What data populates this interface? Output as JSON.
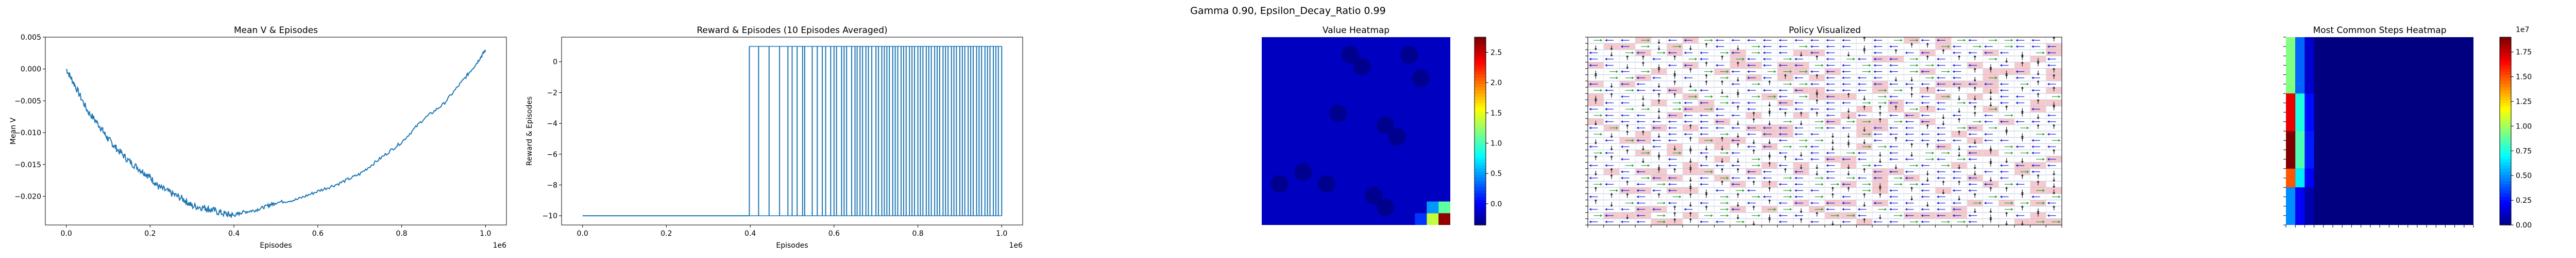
{
  "suptitle": "Gamma  0.90, Epsilon_Decay_Ratio 0.99",
  "chart_data": [
    {
      "type": "line",
      "title": "Mean V & Episodes",
      "xlabel": "Episodes",
      "ylabel": "Mean V",
      "x_offset_label": "1e6",
      "xlim": [
        -0.05,
        1.05
      ],
      "ylim": [
        -0.0245,
        0.005
      ],
      "xticks": [
        0.0,
        0.2,
        0.4,
        0.6,
        0.8,
        1.0
      ],
      "xtick_labels": [
        "0.0",
        "0.2",
        "0.4",
        "0.6",
        "0.8",
        "1.0"
      ],
      "yticks": [
        0.005,
        0.0,
        -0.005,
        -0.01,
        -0.015,
        -0.02
      ],
      "ytick_labels": [
        "0.005",
        "0.000",
        "−0.005",
        "−0.010",
        "−0.015",
        "−0.020"
      ],
      "series": [
        {
          "x": [
            0.0,
            0.02,
            0.05,
            0.08,
            0.1,
            0.12,
            0.15,
            0.18,
            0.2,
            0.22,
            0.25,
            0.28,
            0.3,
            0.33,
            0.35,
            0.38,
            0.4,
            0.42,
            0.45,
            0.48,
            0.5,
            0.55,
            0.6,
            0.65,
            0.7,
            0.75,
            0.8,
            0.85,
            0.9,
            0.95,
            0.98,
            1.0
          ],
          "y": [
            0.0,
            -0.0025,
            -0.0065,
            -0.009,
            -0.011,
            -0.0125,
            -0.0145,
            -0.016,
            -0.017,
            -0.0185,
            -0.0195,
            -0.0205,
            -0.0215,
            -0.0218,
            -0.0222,
            -0.0228,
            -0.023,
            -0.0225,
            -0.0222,
            -0.0215,
            -0.021,
            -0.0205,
            -0.0192,
            -0.018,
            -0.0165,
            -0.014,
            -0.0115,
            -0.008,
            -0.0055,
            -0.0015,
            0.001,
            0.003
          ]
        }
      ]
    },
    {
      "type": "line",
      "title": "Reward & Episodes (10 Episodes Averaged)",
      "xlabel": "Episodes",
      "ylabel": "Reward & Episodes",
      "x_offset_label": "1e6",
      "xlim": [
        -0.05,
        1.05
      ],
      "ylim": [
        -10.6,
        1.6
      ],
      "xticks": [
        0.0,
        0.2,
        0.4,
        0.6,
        0.8,
        1.0
      ],
      "xtick_labels": [
        "0.0",
        "0.2",
        "0.4",
        "0.6",
        "0.8",
        "1.0"
      ],
      "yticks": [
        0,
        -2,
        -4,
        -6,
        -8,
        -10
      ],
      "ytick_labels": [
        "0",
        "−2",
        "−4",
        "−6",
        "−8",
        "−10"
      ],
      "baseline": -10,
      "peak": 1,
      "spike_x": [
        0.398,
        0.42,
        0.445,
        0.47,
        0.49,
        0.5,
        0.512,
        0.525,
        0.53,
        0.548,
        0.56,
        0.572,
        0.58,
        0.592,
        0.6,
        0.606,
        0.618,
        0.624,
        0.63,
        0.642,
        0.65,
        0.655,
        0.662,
        0.668,
        0.676,
        0.682,
        0.69,
        0.7,
        0.706,
        0.714,
        0.72,
        0.726,
        0.732,
        0.74,
        0.746,
        0.752,
        0.76,
        0.766,
        0.772,
        0.78,
        0.786,
        0.792,
        0.8,
        0.806,
        0.812,
        0.82,
        0.826,
        0.832,
        0.84,
        0.846,
        0.852,
        0.86,
        0.866,
        0.872,
        0.88,
        0.886,
        0.892,
        0.9,
        0.906,
        0.912,
        0.92,
        0.926,
        0.932,
        0.94,
        0.946,
        0.952,
        0.96,
        0.966,
        0.972,
        0.98,
        0.986,
        0.992,
        1.0
      ]
    },
    {
      "type": "heatmap",
      "title": "Value Heatmap",
      "colormap": "jet",
      "colorbar_ticks": [
        2.5,
        2.0,
        1.5,
        1.0,
        0.5,
        0.0
      ],
      "colorbar_tick_labels": [
        "2.5",
        "2.0",
        "1.5",
        "1.0",
        "0.5",
        "0.0"
      ],
      "colorbar_range": [
        -0.35,
        2.75
      ],
      "background_value": -0.15,
      "hot_spots": [
        {
          "col": 15,
          "row": 15,
          "value": 2.7
        },
        {
          "col": 14,
          "row": 15,
          "value": 1.4
        },
        {
          "col": 15,
          "row": 14,
          "value": 1.1
        },
        {
          "col": 14,
          "row": 14,
          "value": 0.5
        },
        {
          "col": 13,
          "row": 15,
          "value": 0.2
        }
      ],
      "cold_spots": [
        [
          7,
          1
        ],
        [
          8,
          2
        ],
        [
          12,
          1
        ],
        [
          13,
          3
        ],
        [
          6,
          6
        ],
        [
          10,
          7
        ],
        [
          11,
          8
        ],
        [
          3,
          11
        ],
        [
          5,
          12
        ],
        [
          1,
          12
        ],
        [
          9,
          13
        ],
        [
          10,
          14
        ]
      ]
    },
    {
      "type": "heatmap",
      "title": "Policy Visualized",
      "grid": 30,
      "arrow_colors": {
        "left": "#1f1fd8",
        "up": "#222222",
        "down": "#222222",
        "right": "#2ca02c"
      },
      "highlight_color": "#f7c9cc"
    },
    {
      "type": "heatmap",
      "title": "Most Common Steps Heatmap",
      "colormap": "jet",
      "colorbar_offset_label": "1e7",
      "colorbar_range": [
        0.0,
        1.9
      ],
      "colorbar_ticks": [
        1.75,
        1.5,
        1.25,
        1.0,
        0.75,
        0.5,
        0.25,
        0.0
      ],
      "colorbar_tick_labels": [
        "1.75",
        "1.50",
        "1.25",
        "1.00",
        "0.75",
        "0.50",
        "0.25",
        "0.00"
      ],
      "column_profile": [
        {
          "row_from": 0,
          "row_to": 6,
          "value": 0.95
        },
        {
          "row_from": 6,
          "row_to": 10,
          "value": 1.7
        },
        {
          "row_from": 10,
          "row_to": 14,
          "value": 1.9
        },
        {
          "row_from": 14,
          "row_to": 16,
          "value": 1.5
        },
        {
          "row_from": 16,
          "row_to": 20,
          "value": 0.5
        }
      ]
    }
  ]
}
